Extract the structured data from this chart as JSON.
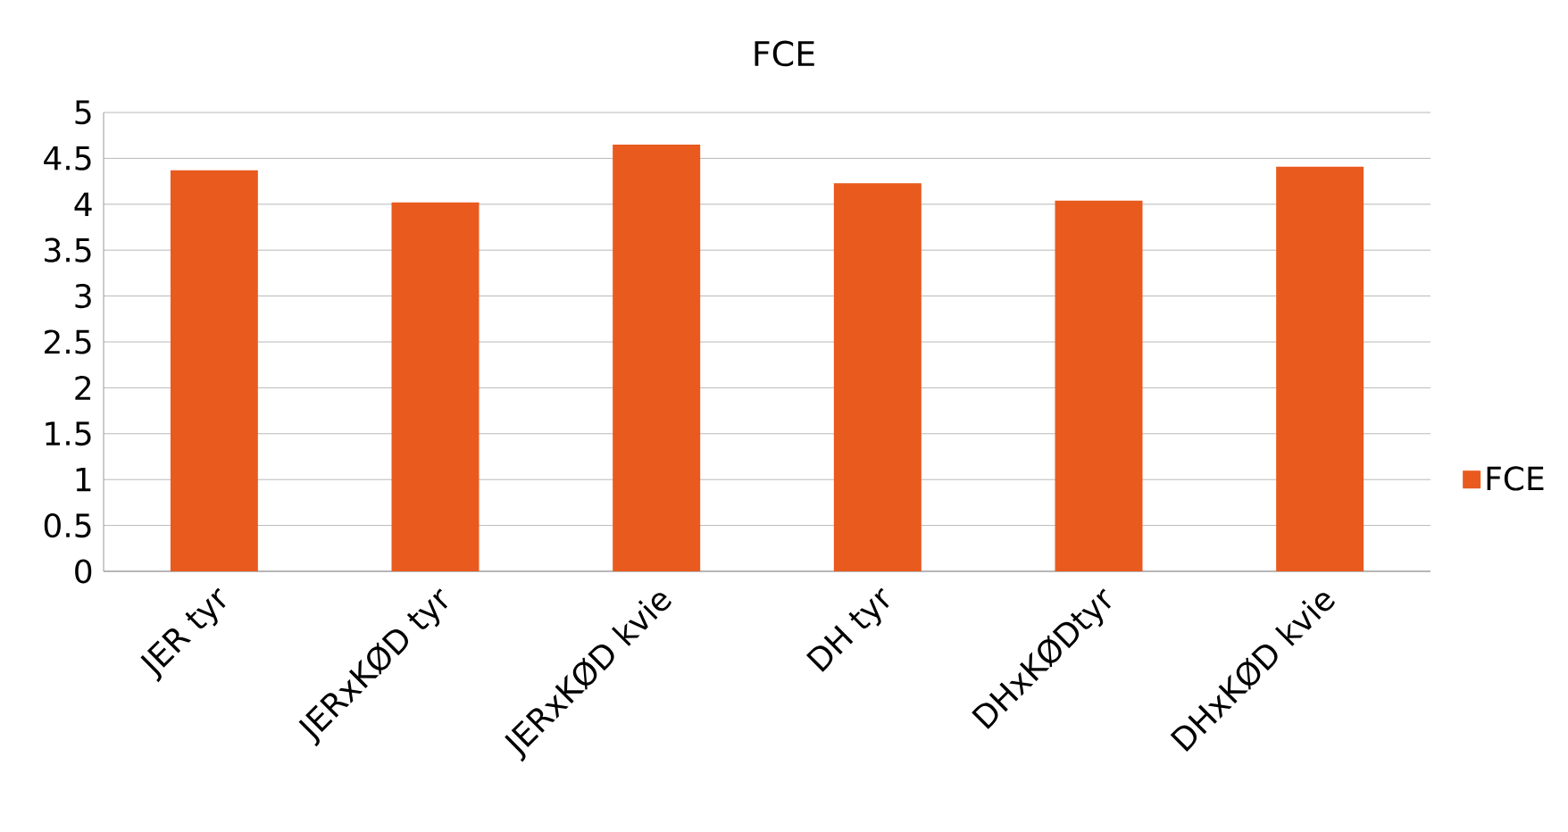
{
  "chart_data": {
    "type": "bar",
    "title": "FCE",
    "categories": [
      "JER tyr",
      "JERxKØD tyr",
      "JERxKØD kvie",
      "DH tyr",
      "DHxKØDtyr",
      "DHxKØD kvie"
    ],
    "series": [
      {
        "name": "FCE",
        "color": "#e95a1e",
        "values": [
          4.37,
          4.02,
          4.65,
          4.23,
          4.04,
          4.41
        ]
      }
    ],
    "ylim": [
      0,
      5
    ],
    "yticks": [
      0,
      0.5,
      1,
      1.5,
      2,
      2.5,
      3,
      3.5,
      4,
      4.5,
      5
    ],
    "grid": "y",
    "legend": "right"
  }
}
